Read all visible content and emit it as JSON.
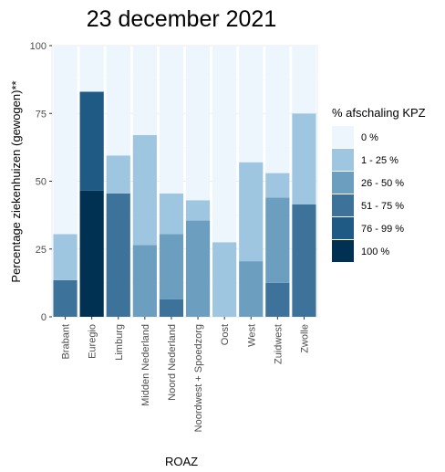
{
  "chart_data": {
    "type": "bar",
    "stacked": true,
    "title": "23 december 2021",
    "xlabel": "ROAZ",
    "ylabel": "Percentage ziekenhuizen (gewogen)**",
    "ylim": [
      0,
      100
    ],
    "yticks": [
      "0",
      "25",
      "50",
      "75",
      "100"
    ],
    "grid": true,
    "legend_title": "% afschaling KPZ",
    "legend_position": "right",
    "categories": [
      "Brabant",
      "Euregio",
      "Limburg",
      "Midden Nederland",
      "Noord Nederland",
      "Noordwest + Spoedzorg",
      "Oost",
      "West",
      "Zuidwest",
      "Zwolle"
    ],
    "series": [
      {
        "name": "100 %",
        "color": "#003152",
        "values": [
          0,
          46.5,
          0,
          0,
          0,
          0,
          0,
          0,
          0,
          0
        ]
      },
      {
        "name": "76 - 99 %",
        "color": "#1f5a85",
        "values": [
          0,
          36.5,
          0,
          0,
          0,
          0,
          0,
          0,
          0,
          0
        ]
      },
      {
        "name": "51 - 75 %",
        "color": "#3d739a",
        "values": [
          13.5,
          0,
          45.5,
          0,
          6.5,
          0,
          0,
          0,
          12.5,
          41.5
        ]
      },
      {
        "name": "26 - 50 %",
        "color": "#6c9ec0",
        "values": [
          0,
          0,
          0,
          26.5,
          24,
          35.5,
          0,
          20.5,
          31.5,
          0
        ]
      },
      {
        "name": "1 - 25 %",
        "color": "#9fc6e0",
        "values": [
          17,
          0,
          14,
          40.5,
          15,
          7.5,
          27.5,
          36.5,
          9,
          33.5
        ]
      },
      {
        "name": "0 %",
        "color": "#edf5fd",
        "values": [
          69.5,
          17,
          40.5,
          33,
          54.5,
          57,
          72.5,
          43,
          47,
          25
        ]
      }
    ]
  }
}
